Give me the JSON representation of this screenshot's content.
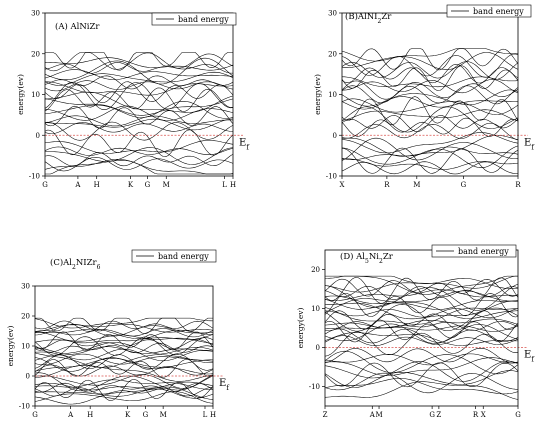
{
  "chart_data": [
    {
      "type": "line",
      "title": "(A) AlNiZr",
      "title_main": "(A) AlNiZr",
      "title_sub": "",
      "title_tail": "",
      "ylabel": "energy(ev)",
      "xlabel": "",
      "legend": "band energy",
      "fermi_label": "E",
      "fermi_sub": "f",
      "ylim": [
        -10,
        30
      ],
      "yticks": [
        -10,
        0,
        10,
        20,
        30
      ],
      "kpoints": [
        {
          "label": "G",
          "pos": 0.0
        },
        {
          "label": "A",
          "pos": 0.175
        },
        {
          "label": "H",
          "pos": 0.275
        },
        {
          "label": "K",
          "pos": 0.455
        },
        {
          "label": "G",
          "pos": 0.545
        },
        {
          "label": "M",
          "pos": 0.645
        },
        {
          "label": "L",
          "pos": 0.955
        },
        {
          "label": "H",
          "pos": 1.0
        }
      ],
      "bands": {
        "count": 30,
        "lower_min": -9,
        "upper_max": 20
      },
      "fermi_level": 0,
      "fermi_color": "#d9534f",
      "grid": false
    },
    {
      "type": "line",
      "title": "(B)AlNi2Zr",
      "title_main": "(B)AlNI",
      "title_sub": "2",
      "title_tail": "Zr",
      "ylabel": "energy(ev)",
      "xlabel": "",
      "legend": "band energy",
      "fermi_label": "E",
      "fermi_sub": "f",
      "ylim": [
        -10,
        30
      ],
      "yticks": [
        -10,
        0,
        10,
        20,
        30
      ],
      "kpoints": [
        {
          "label": "X",
          "pos": 0.0
        },
        {
          "label": "R",
          "pos": 0.255
        },
        {
          "label": "M",
          "pos": 0.425
        },
        {
          "label": "G",
          "pos": 0.69
        },
        {
          "label": "R",
          "pos": 1.0
        }
      ],
      "bands": {
        "count": 28,
        "lower_min": -8,
        "upper_max": 21
      },
      "fermi_level": 0,
      "fermi_color": "#d9534f",
      "grid": false
    },
    {
      "type": "line",
      "title": "(C)Al2NiZr6",
      "title_main": "(C)Al",
      "title_sub": "2",
      "title_tail": "NIZr",
      "title_sub2": "6",
      "ylabel": "energy(ev)",
      "xlabel": "",
      "legend": "band energy",
      "fermi_label": "E",
      "fermi_sub": "f",
      "ylim": [
        -10,
        30
      ],
      "yticks": [
        -10,
        0,
        10,
        20,
        30
      ],
      "kpoints": [
        {
          "label": "G",
          "pos": 0.0
        },
        {
          "label": "A",
          "pos": 0.2
        },
        {
          "label": "H",
          "pos": 0.31
        },
        {
          "label": "K",
          "pos": 0.52
        },
        {
          "label": "G",
          "pos": 0.62
        },
        {
          "label": "M",
          "pos": 0.72
        },
        {
          "label": "L",
          "pos": 0.955
        },
        {
          "label": "H",
          "pos": 1.0
        }
      ],
      "bands": {
        "count": 34,
        "lower_min": -7,
        "upper_max": 19
      },
      "fermi_level": 0,
      "fermi_color": "#d9534f",
      "grid": false
    },
    {
      "type": "line",
      "title": "(D) Al5Ni2Zr",
      "title_main": "(D) Al",
      "title_sub": "5",
      "title_tail": "Ni",
      "title_sub2": "2",
      "title_tail2": "Zr",
      "ylabel": "energy(ev)",
      "xlabel": "",
      "legend": "band energy",
      "fermi_label": "E",
      "fermi_sub": "f",
      "ylim": [
        -15,
        25
      ],
      "yticks": [
        -10,
        0,
        10,
        20
      ],
      "kpoints": [
        {
          "label": "Z",
          "pos": 0.0
        },
        {
          "label": "A",
          "pos": 0.245
        },
        {
          "label": "M",
          "pos": 0.28
        },
        {
          "label": "G",
          "pos": 0.555
        },
        {
          "label": "Z",
          "pos": 0.59
        },
        {
          "label": "R",
          "pos": 0.78
        },
        {
          "label": "X",
          "pos": 0.82
        },
        {
          "label": "G",
          "pos": 1.0
        }
      ],
      "bands": {
        "count": 36,
        "lower_min": -11,
        "upper_max": 18
      },
      "fermi_level": 0,
      "fermi_color": "#d9534f",
      "grid": false
    }
  ]
}
